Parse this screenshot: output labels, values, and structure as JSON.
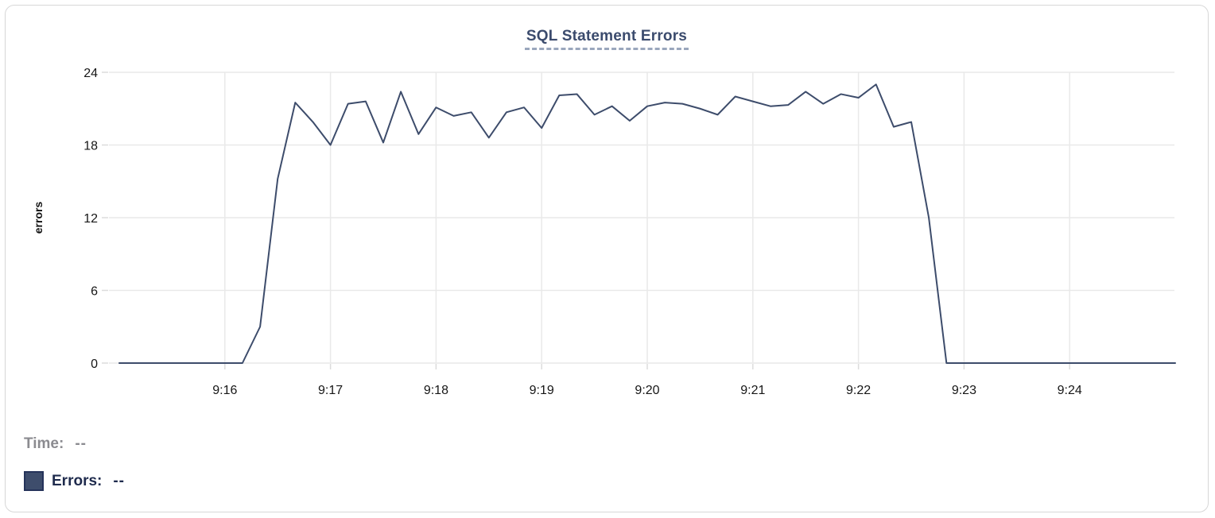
{
  "chart": {
    "title": "SQL Statement Errors"
  },
  "legend": {
    "time_label": "Time:",
    "time_value": "--",
    "errors_label": "Errors:",
    "errors_value": "--",
    "swatch_color": "#3e4d6c",
    "swatch_border_color": "#25335a"
  },
  "chart_data": {
    "type": "line",
    "title": "SQL Statement Errors",
    "xlabel": "",
    "ylabel": "errors",
    "ylim": [
      0,
      24
    ],
    "y_ticks": [
      0,
      6,
      12,
      18,
      24
    ],
    "x_tick_labels": [
      "9:16",
      "9:17",
      "9:18",
      "9:19",
      "9:20",
      "9:21",
      "9:22",
      "9:23",
      "9:24"
    ],
    "x_range": [
      "9:15:00",
      "9:25:00"
    ],
    "sample_interval_seconds": 10,
    "grid": true,
    "legend_position": "bottom-left",
    "line_color": "#3d4c6b",
    "grid_color": "#e9e9e9",
    "tick_text_color": "#161616",
    "series": [
      {
        "name": "Errors",
        "times": [
          "9:15:00",
          "9:15:10",
          "9:15:20",
          "9:15:30",
          "9:15:40",
          "9:15:50",
          "9:16:00",
          "9:16:10",
          "9:16:20",
          "9:16:30",
          "9:16:40",
          "9:16:50",
          "9:17:00",
          "9:17:10",
          "9:17:20",
          "9:17:30",
          "9:17:40",
          "9:17:50",
          "9:18:00",
          "9:18:10",
          "9:18:20",
          "9:18:30",
          "9:18:40",
          "9:18:50",
          "9:19:00",
          "9:19:10",
          "9:19:20",
          "9:19:30",
          "9:19:40",
          "9:19:50",
          "9:20:00",
          "9:20:10",
          "9:20:20",
          "9:20:30",
          "9:20:40",
          "9:20:50",
          "9:21:00",
          "9:21:10",
          "9:21:20",
          "9:21:30",
          "9:21:40",
          "9:21:50",
          "9:22:00",
          "9:22:10",
          "9:22:20",
          "9:22:30",
          "9:22:40",
          "9:22:50",
          "9:23:00",
          "9:23:10",
          "9:23:20",
          "9:23:30",
          "9:23:40",
          "9:23:50",
          "9:24:00",
          "9:24:10",
          "9:24:20",
          "9:24:30",
          "9:24:40",
          "9:24:50",
          "9:25:00"
        ],
        "values": [
          0,
          0,
          0,
          0,
          0,
          0,
          0,
          0,
          3,
          15.2,
          21.5,
          19.9,
          18,
          21.4,
          21.6,
          18.2,
          22.4,
          18.9,
          21.1,
          20.4,
          20.7,
          18.6,
          20.7,
          21.1,
          19.4,
          22.1,
          22.2,
          20.5,
          21.2,
          20,
          21.2,
          21.5,
          21.4,
          21,
          20.5,
          22,
          21.6,
          21.2,
          21.3,
          22.4,
          21.4,
          22.2,
          21.9,
          23,
          19.5,
          19.9,
          12,
          0,
          0,
          0,
          0,
          0,
          0,
          0,
          0,
          0,
          0,
          0,
          0,
          0,
          0
        ]
      }
    ]
  }
}
